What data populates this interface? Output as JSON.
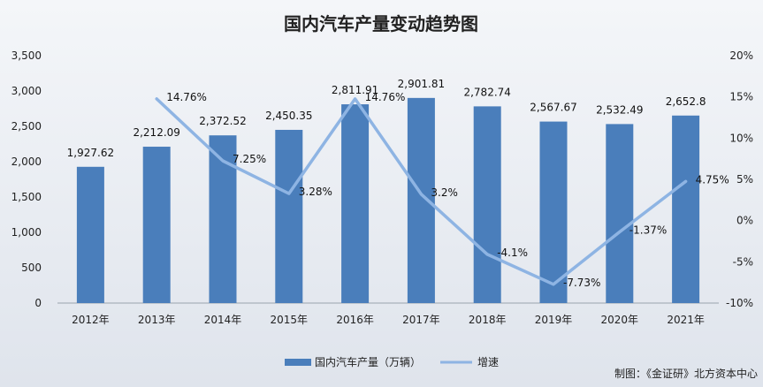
{
  "chart_data": {
    "type": "bar",
    "title": "国内汽车产量变动趋势图",
    "categories": [
      "2012年",
      "2013年",
      "2014年",
      "2015年",
      "2016年",
      "2017年",
      "2018年",
      "2019年",
      "2020年",
      "2021年"
    ],
    "series": [
      {
        "name": "国内汽车产量（万辆）",
        "type": "bar",
        "axis": "left",
        "color": "#4a7ebb",
        "values": [
          1927.62,
          2212.09,
          2372.52,
          2450.35,
          2811.91,
          2901.81,
          2782.74,
          2567.67,
          2532.49,
          2652.8
        ],
        "labels": [
          "1,927.62",
          "2,212.09",
          "2,372.52",
          "2,450.35",
          "2,811.91",
          "2,901.81",
          "2,782.74",
          "2,567.67",
          "2,532.49",
          "2,652.8"
        ]
      },
      {
        "name": "增速",
        "type": "line",
        "axis": "right",
        "color": "#8eb4e3",
        "values": [
          null,
          14.76,
          7.25,
          3.28,
          14.76,
          3.2,
          -4.1,
          -7.73,
          -1.37,
          4.75
        ],
        "labels": [
          "",
          "14.76%",
          "7.25%",
          "3.28%",
          "14.76%",
          "3.2%",
          "-4.1%",
          "-7.73%",
          "-1.37%",
          "4.75%"
        ]
      }
    ],
    "y_left": {
      "ylim": [
        0,
        3500
      ],
      "ticks": [
        0,
        500,
        1000,
        1500,
        2000,
        2500,
        3000,
        3500
      ],
      "tick_labels": [
        "0",
        "500",
        "1,000",
        "1,500",
        "2,000",
        "2,500",
        "3,000",
        "3,500"
      ]
    },
    "y_right": {
      "ylim": [
        -10,
        20
      ],
      "ticks": [
        -10,
        -5,
        0,
        5,
        10,
        15,
        20
      ],
      "tick_labels": [
        "-10%",
        "-5%",
        "0%",
        "5%",
        "10%",
        "15%",
        "20%"
      ]
    },
    "grid": false,
    "legend_position": "bottom"
  },
  "source_note": "制图：《金证研》北方资本中心"
}
